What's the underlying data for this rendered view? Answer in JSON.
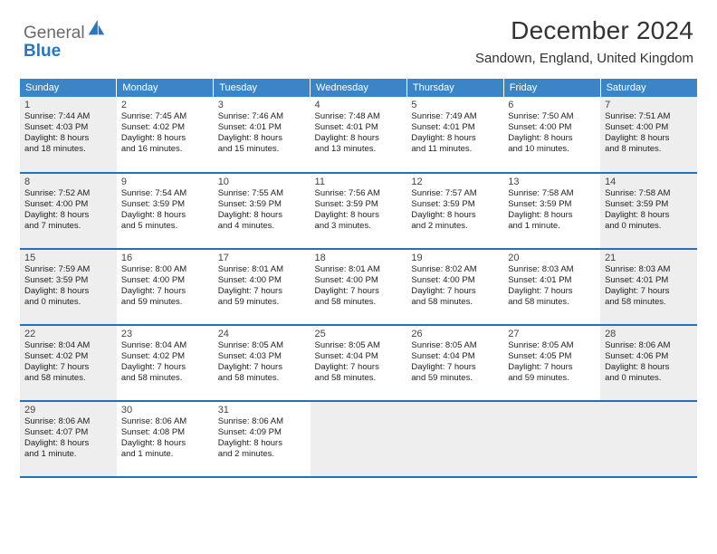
{
  "logo": {
    "general": "General",
    "blue": "Blue"
  },
  "title": "December 2024",
  "subtitle": "Sandown, England, United Kingdom",
  "colors": {
    "header_bg": "#3b85c6",
    "header_text": "#ffffff",
    "row_border": "#2a6fb0",
    "faded_bg": "#eeeeee",
    "logo_gray": "#6a6a6a",
    "logo_blue": "#2a75bb"
  },
  "dow": [
    "Sunday",
    "Monday",
    "Tuesday",
    "Wednesday",
    "Thursday",
    "Friday",
    "Saturday"
  ],
  "weeks": [
    [
      {
        "num": "1",
        "faded": true,
        "sunrise": "Sunrise: 7:44 AM",
        "sunset": "Sunset: 4:03 PM",
        "daylight1": "Daylight: 8 hours",
        "daylight2": "and 18 minutes."
      },
      {
        "num": "2",
        "faded": false,
        "sunrise": "Sunrise: 7:45 AM",
        "sunset": "Sunset: 4:02 PM",
        "daylight1": "Daylight: 8 hours",
        "daylight2": "and 16 minutes."
      },
      {
        "num": "3",
        "faded": false,
        "sunrise": "Sunrise: 7:46 AM",
        "sunset": "Sunset: 4:01 PM",
        "daylight1": "Daylight: 8 hours",
        "daylight2": "and 15 minutes."
      },
      {
        "num": "4",
        "faded": false,
        "sunrise": "Sunrise: 7:48 AM",
        "sunset": "Sunset: 4:01 PM",
        "daylight1": "Daylight: 8 hours",
        "daylight2": "and 13 minutes."
      },
      {
        "num": "5",
        "faded": false,
        "sunrise": "Sunrise: 7:49 AM",
        "sunset": "Sunset: 4:01 PM",
        "daylight1": "Daylight: 8 hours",
        "daylight2": "and 11 minutes."
      },
      {
        "num": "6",
        "faded": false,
        "sunrise": "Sunrise: 7:50 AM",
        "sunset": "Sunset: 4:00 PM",
        "daylight1": "Daylight: 8 hours",
        "daylight2": "and 10 minutes."
      },
      {
        "num": "7",
        "faded": true,
        "sunrise": "Sunrise: 7:51 AM",
        "sunset": "Sunset: 4:00 PM",
        "daylight1": "Daylight: 8 hours",
        "daylight2": "and 8 minutes."
      }
    ],
    [
      {
        "num": "8",
        "faded": true,
        "sunrise": "Sunrise: 7:52 AM",
        "sunset": "Sunset: 4:00 PM",
        "daylight1": "Daylight: 8 hours",
        "daylight2": "and 7 minutes."
      },
      {
        "num": "9",
        "faded": false,
        "sunrise": "Sunrise: 7:54 AM",
        "sunset": "Sunset: 3:59 PM",
        "daylight1": "Daylight: 8 hours",
        "daylight2": "and 5 minutes."
      },
      {
        "num": "10",
        "faded": false,
        "sunrise": "Sunrise: 7:55 AM",
        "sunset": "Sunset: 3:59 PM",
        "daylight1": "Daylight: 8 hours",
        "daylight2": "and 4 minutes."
      },
      {
        "num": "11",
        "faded": false,
        "sunrise": "Sunrise: 7:56 AM",
        "sunset": "Sunset: 3:59 PM",
        "daylight1": "Daylight: 8 hours",
        "daylight2": "and 3 minutes."
      },
      {
        "num": "12",
        "faded": false,
        "sunrise": "Sunrise: 7:57 AM",
        "sunset": "Sunset: 3:59 PM",
        "daylight1": "Daylight: 8 hours",
        "daylight2": "and 2 minutes."
      },
      {
        "num": "13",
        "faded": false,
        "sunrise": "Sunrise: 7:58 AM",
        "sunset": "Sunset: 3:59 PM",
        "daylight1": "Daylight: 8 hours",
        "daylight2": "and 1 minute."
      },
      {
        "num": "14",
        "faded": true,
        "sunrise": "Sunrise: 7:58 AM",
        "sunset": "Sunset: 3:59 PM",
        "daylight1": "Daylight: 8 hours",
        "daylight2": "and 0 minutes."
      }
    ],
    [
      {
        "num": "15",
        "faded": true,
        "sunrise": "Sunrise: 7:59 AM",
        "sunset": "Sunset: 3:59 PM",
        "daylight1": "Daylight: 8 hours",
        "daylight2": "and 0 minutes."
      },
      {
        "num": "16",
        "faded": false,
        "sunrise": "Sunrise: 8:00 AM",
        "sunset": "Sunset: 4:00 PM",
        "daylight1": "Daylight: 7 hours",
        "daylight2": "and 59 minutes."
      },
      {
        "num": "17",
        "faded": false,
        "sunrise": "Sunrise: 8:01 AM",
        "sunset": "Sunset: 4:00 PM",
        "daylight1": "Daylight: 7 hours",
        "daylight2": "and 59 minutes."
      },
      {
        "num": "18",
        "faded": false,
        "sunrise": "Sunrise: 8:01 AM",
        "sunset": "Sunset: 4:00 PM",
        "daylight1": "Daylight: 7 hours",
        "daylight2": "and 58 minutes."
      },
      {
        "num": "19",
        "faded": false,
        "sunrise": "Sunrise: 8:02 AM",
        "sunset": "Sunset: 4:00 PM",
        "daylight1": "Daylight: 7 hours",
        "daylight2": "and 58 minutes."
      },
      {
        "num": "20",
        "faded": false,
        "sunrise": "Sunrise: 8:03 AM",
        "sunset": "Sunset: 4:01 PM",
        "daylight1": "Daylight: 7 hours",
        "daylight2": "and 58 minutes."
      },
      {
        "num": "21",
        "faded": true,
        "sunrise": "Sunrise: 8:03 AM",
        "sunset": "Sunset: 4:01 PM",
        "daylight1": "Daylight: 7 hours",
        "daylight2": "and 58 minutes."
      }
    ],
    [
      {
        "num": "22",
        "faded": true,
        "sunrise": "Sunrise: 8:04 AM",
        "sunset": "Sunset: 4:02 PM",
        "daylight1": "Daylight: 7 hours",
        "daylight2": "and 58 minutes."
      },
      {
        "num": "23",
        "faded": false,
        "sunrise": "Sunrise: 8:04 AM",
        "sunset": "Sunset: 4:02 PM",
        "daylight1": "Daylight: 7 hours",
        "daylight2": "and 58 minutes."
      },
      {
        "num": "24",
        "faded": false,
        "sunrise": "Sunrise: 8:05 AM",
        "sunset": "Sunset: 4:03 PM",
        "daylight1": "Daylight: 7 hours",
        "daylight2": "and 58 minutes."
      },
      {
        "num": "25",
        "faded": false,
        "sunrise": "Sunrise: 8:05 AM",
        "sunset": "Sunset: 4:04 PM",
        "daylight1": "Daylight: 7 hours",
        "daylight2": "and 58 minutes."
      },
      {
        "num": "26",
        "faded": false,
        "sunrise": "Sunrise: 8:05 AM",
        "sunset": "Sunset: 4:04 PM",
        "daylight1": "Daylight: 7 hours",
        "daylight2": "and 59 minutes."
      },
      {
        "num": "27",
        "faded": false,
        "sunrise": "Sunrise: 8:05 AM",
        "sunset": "Sunset: 4:05 PM",
        "daylight1": "Daylight: 7 hours",
        "daylight2": "and 59 minutes."
      },
      {
        "num": "28",
        "faded": true,
        "sunrise": "Sunrise: 8:06 AM",
        "sunset": "Sunset: 4:06 PM",
        "daylight1": "Daylight: 8 hours",
        "daylight2": "and 0 minutes."
      }
    ],
    [
      {
        "num": "29",
        "faded": true,
        "sunrise": "Sunrise: 8:06 AM",
        "sunset": "Sunset: 4:07 PM",
        "daylight1": "Daylight: 8 hours",
        "daylight2": "and 1 minute."
      },
      {
        "num": "30",
        "faded": false,
        "sunrise": "Sunrise: 8:06 AM",
        "sunset": "Sunset: 4:08 PM",
        "daylight1": "Daylight: 8 hours",
        "daylight2": "and 1 minute."
      },
      {
        "num": "31",
        "faded": false,
        "sunrise": "Sunrise: 8:06 AM",
        "sunset": "Sunset: 4:09 PM",
        "daylight1": "Daylight: 8 hours",
        "daylight2": "and 2 minutes."
      },
      {
        "empty": true,
        "faded": true
      },
      {
        "empty": true,
        "faded": true
      },
      {
        "empty": true,
        "faded": true
      },
      {
        "empty": true,
        "faded": true
      }
    ]
  ]
}
